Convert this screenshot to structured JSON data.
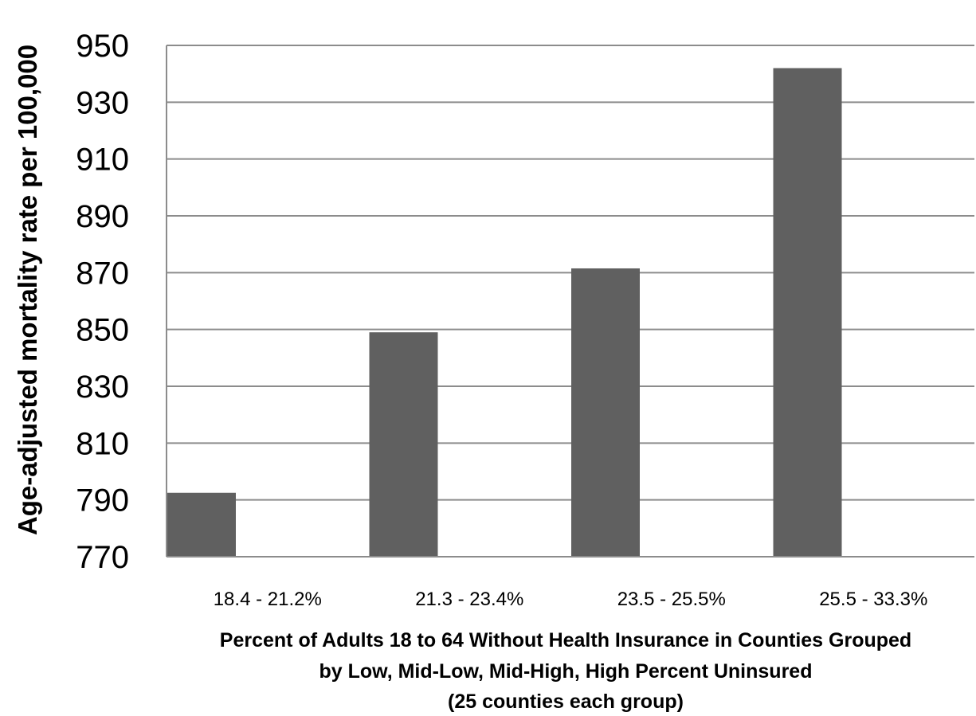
{
  "chart_data": {
    "type": "bar",
    "categories": [
      "18.4 - 21.2%",
      "21.3 - 23.4%",
      "23.5 - 25.5%",
      "25.5 - 33.3%"
    ],
    "values": [
      792.5,
      849,
      871.5,
      942
    ],
    "title": "",
    "xlabel_lines": [
      "Percent  of  Adults 18 to 64 Without Health Insurance  in Counties Grouped",
      "by Low, Mid-Low, Mid-High, High Percent  Uninsured",
      "(25 counties each group)"
    ],
    "ylabel": "Age-adjusted mortality rate per 100,000",
    "ylim": [
      770,
      950
    ],
    "yticks": [
      770,
      790,
      810,
      830,
      850,
      870,
      890,
      910,
      930,
      950
    ],
    "grid": true,
    "legend": "none",
    "bar_color": "#606060",
    "grid_color": "#8c8c8c"
  }
}
